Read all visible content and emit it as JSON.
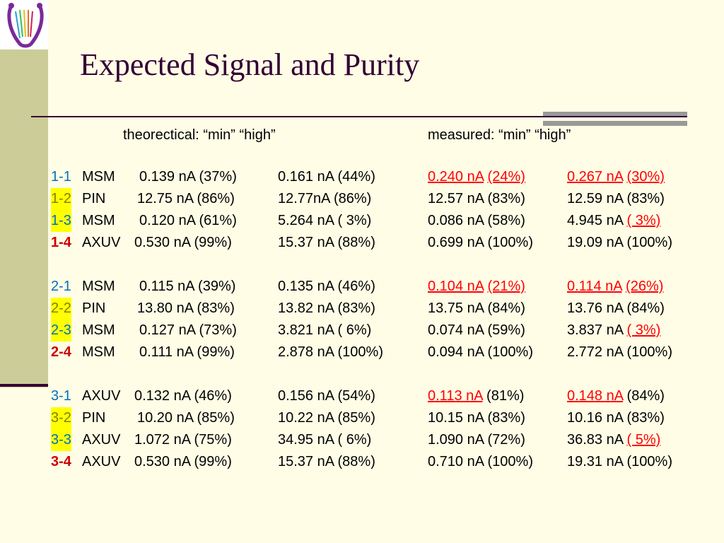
{
  "slide": {
    "title": "Expected Signal and Purity",
    "header": {
      "theoretical": "theorectical: “min”   “high”",
      "measured": "measured: “min”   “high”"
    }
  },
  "rows": [
    {
      "id": "1-1",
      "detector": "MSM",
      "tmin": "0.139 nA (37%)",
      "thigh": "0.161 nA (44%)",
      "mmin_a": "0.240 nA",
      "mmin_b": "(24%)",
      "mhigh_a": "0.267 nA",
      "mhigh_b": "(30%)"
    },
    {
      "id": "1-2",
      "detector": "PIN",
      "tmin": "12.75 nA (86%)",
      "thigh": "12.77nA (86%)",
      "mmin_a": "12.57 nA (83%)",
      "mmin_b": "",
      "mhigh_a": "12.59 nA (83%)",
      "mhigh_b": ""
    },
    {
      "id": "1-3",
      "detector": "MSM",
      "tmin": "0.120 nA (61%)",
      "thigh": "5.264 nA ( 3%)",
      "mmin_a": "0.086 nA (58%)",
      "mmin_b": "",
      "mhigh_a": "4.945 nA",
      "mhigh_b": "( 3%)"
    },
    {
      "id": "1-4",
      "detector": "AXUV",
      "tmin": "0.530 nA (99%)",
      "thigh": "15.37 nA (88%)",
      "mmin_a": "0.699 nA (100%)",
      "mmin_b": "",
      "mhigh_a": "19.09 nA (100%)",
      "mhigh_b": ""
    },
    {
      "id": "2-1",
      "detector": "MSM",
      "tmin": "0.115 nA (39%)",
      "thigh": "0.135 nA (46%)",
      "mmin_a": "0.104 nA",
      "mmin_b": "(21%)",
      "mhigh_a": "0.114 nA",
      "mhigh_b": "(26%)"
    },
    {
      "id": "2-2",
      "detector": "PIN",
      "tmin": "13.80 nA (83%)",
      "thigh": "13.82 nA (83%)",
      "mmin_a": "13.75 nA (84%)",
      "mmin_b": "",
      "mhigh_a": "13.76 nA (84%)",
      "mhigh_b": ""
    },
    {
      "id": "2-3",
      "detector": "MSM",
      "tmin": "0.127 nA (73%)",
      "thigh": "3.821 nA ( 6%)",
      "mmin_a": "0.074 nA (59%)",
      "mmin_b": "",
      "mhigh_a": "3.837 nA",
      "mhigh_b": "( 3%)"
    },
    {
      "id": "2-4",
      "detector": "MSM",
      "tmin": "0.111 nA (99%)",
      "thigh": "2.878 nA (100%)",
      "mmin_a": "0.094 nA (100%)",
      "mmin_b": "",
      "mhigh_a": "2.772 nA (100%)",
      "mhigh_b": ""
    },
    {
      "id": "3-1",
      "detector": "AXUV",
      "tmin": "0.132 nA (46%)",
      "thigh": "0.156 nA (54%)",
      "mmin_a": "0.113 nA",
      "mmin_b": "(81%)",
      "mhigh_a": "0.148 nA",
      "mhigh_b": "(84%)"
    },
    {
      "id": "3-2",
      "detector": "PIN",
      "tmin": "10.20 nA (85%)",
      "thigh": "10.22 nA (85%)",
      "mmin_a": "10.15 nA (83%)",
      "mmin_b": "",
      "mhigh_a": "10.16 nA (83%)",
      "mhigh_b": ""
    },
    {
      "id": "3-3",
      "detector": "AXUV",
      "tmin": "1.072 nA (75%)",
      "thigh": "34.95 nA ( 6%)",
      "mmin_a": "1.090 nA (72%)",
      "mmin_b": "",
      "mhigh_a": "36.83 nA",
      "mhigh_b": "( 5%)"
    },
    {
      "id": "3-4",
      "detector": "AXUV",
      "tmin": "0.530 nA (99%)",
      "thigh": "15.37 nA (88%)",
      "mmin_a": "0.710 nA (100%)",
      "mmin_b": "",
      "mhigh_a": "19.31 nA (100%)",
      "mhigh_b": ""
    }
  ],
  "colors": {
    "title": "#330033",
    "background": "#fffde6",
    "sidebar": "#cccc99",
    "highlight": "#ffff00",
    "alert": "#ff0000"
  },
  "icons": {
    "logo": "lyre-logo-icon"
  }
}
